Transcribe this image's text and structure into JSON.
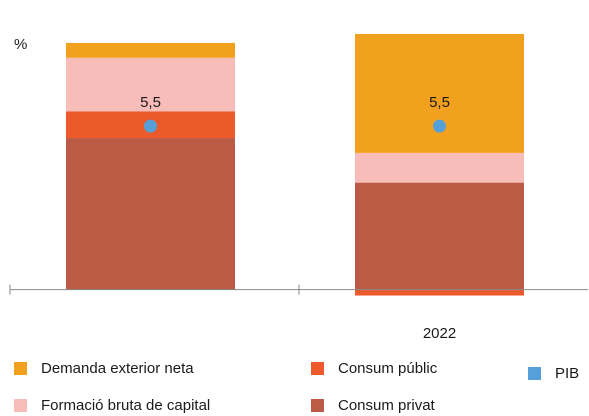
{
  "chart_data": {
    "type": "bar",
    "stacked": true,
    "unit_label": "%",
    "categories": [
      "",
      "2022"
    ],
    "series": [
      {
        "name": "Consum privat",
        "color": "#bb5a45",
        "values": [
          5.1,
          3.6
        ]
      },
      {
        "name": "Consum públic",
        "color": "#ec5a2b",
        "values": [
          0.9,
          -0.2
        ]
      },
      {
        "name": "Formació bruta de capital",
        "color": "#f8bdb8",
        "values": [
          1.8,
          1.0
        ]
      },
      {
        "name": "Demanda exterior neta",
        "color": "#f2a11f",
        "values": [
          0.5,
          4.0
        ]
      }
    ],
    "overlay": {
      "name": "PIB",
      "color": "#55a0d8",
      "type": "scatter",
      "values": [
        5.5,
        5.5
      ],
      "labels": [
        "5,5",
        "5,5"
      ]
    },
    "ylim": [
      -0.35,
      8.5
    ],
    "grid": false,
    "legend_position": "bottom"
  }
}
